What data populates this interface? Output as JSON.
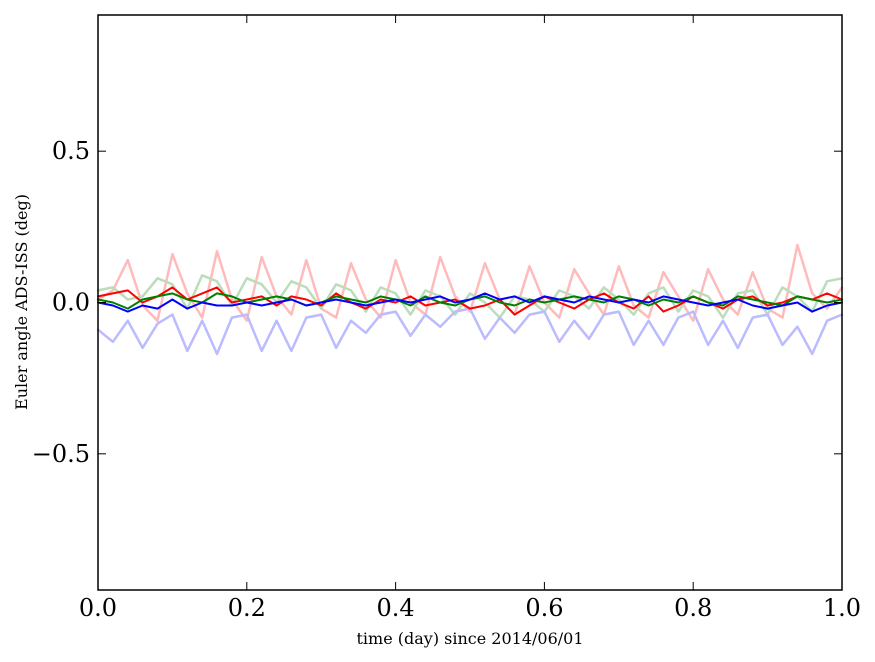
{
  "chart_data": {
    "type": "line",
    "title": "",
    "xlabel": "time (day) since 2014/06/01",
    "ylabel": "Euler angle ADS-ISS (deg)",
    "xlim": [
      0.0,
      1.0
    ],
    "ylim": [
      -0.95,
      0.95
    ],
    "xticks": [
      0.0,
      0.2,
      0.4,
      0.6,
      0.8,
      1.0
    ],
    "xtick_labels": [
      "0.0",
      "0.2",
      "0.4",
      "0.6",
      "0.8",
      "1.0"
    ],
    "yticks": [
      0.5,
      0.0,
      -0.5
    ],
    "ytick_labels": [
      "0.5",
      "0.0",
      "−0.5"
    ],
    "grid": false,
    "legend": "none",
    "x": [
      0.0,
      0.02,
      0.04,
      0.06,
      0.08,
      0.1,
      0.12,
      0.14,
      0.16,
      0.18,
      0.2,
      0.22,
      0.24,
      0.26,
      0.28,
      0.3,
      0.32,
      0.34,
      0.36,
      0.38,
      0.4,
      0.42,
      0.44,
      0.46,
      0.48,
      0.5,
      0.52,
      0.54,
      0.56,
      0.58,
      0.6,
      0.62,
      0.64,
      0.66,
      0.68,
      0.7,
      0.72,
      0.74,
      0.76,
      0.78,
      0.8,
      0.82,
      0.84,
      0.86,
      0.88,
      0.9,
      0.92,
      0.94,
      0.96,
      0.98,
      1.0
    ],
    "series": [
      {
        "color": "#ffbbbb",
        "width": 2.5,
        "values": [
          0.01,
          0.04,
          0.14,
          -0.01,
          -0.06,
          0.16,
          0.03,
          -0.05,
          0.17,
          0.01,
          -0.06,
          0.15,
          0.02,
          -0.04,
          0.14,
          -0.02,
          -0.05,
          0.13,
          0.01,
          -0.05,
          0.14,
          0.0,
          -0.04,
          0.15,
          0.02,
          -0.03,
          0.13,
          0.01,
          -0.04,
          0.12,
          0.0,
          -0.05,
          0.11,
          0.03,
          -0.04,
          0.12,
          -0.01,
          -0.05,
          0.1,
          0.02,
          -0.06,
          0.11,
          0.01,
          -0.04,
          0.1,
          -0.02,
          -0.05,
          0.19,
          0.03,
          -0.02,
          0.05
        ]
      },
      {
        "color": "#bbddbb",
        "width": 2.5,
        "values": [
          0.04,
          0.05,
          0.01,
          0.02,
          0.08,
          0.06,
          -0.02,
          0.09,
          0.07,
          -0.01,
          0.08,
          0.06,
          0.0,
          0.07,
          0.05,
          -0.02,
          0.06,
          0.04,
          -0.03,
          0.05,
          0.03,
          -0.04,
          0.04,
          0.02,
          -0.04,
          0.03,
          0.0,
          -0.05,
          0.02,
          0.01,
          -0.03,
          0.04,
          0.02,
          -0.02,
          0.05,
          0.01,
          -0.04,
          0.03,
          0.05,
          -0.03,
          0.04,
          0.02,
          -0.05,
          0.03,
          0.04,
          -0.04,
          0.05,
          0.02,
          -0.03,
          0.07,
          0.08
        ]
      },
      {
        "color": "#bbbbff",
        "width": 2.5,
        "values": [
          -0.09,
          -0.13,
          -0.06,
          -0.15,
          -0.07,
          -0.04,
          -0.16,
          -0.06,
          -0.17,
          -0.05,
          -0.04,
          -0.16,
          -0.06,
          -0.16,
          -0.05,
          -0.04,
          -0.15,
          -0.06,
          -0.1,
          -0.04,
          -0.03,
          -0.11,
          -0.04,
          -0.08,
          -0.03,
          -0.02,
          -0.12,
          -0.05,
          -0.1,
          -0.04,
          -0.03,
          -0.13,
          -0.06,
          -0.12,
          -0.04,
          -0.03,
          -0.14,
          -0.06,
          -0.14,
          -0.05,
          -0.03,
          -0.14,
          -0.06,
          -0.15,
          -0.05,
          -0.04,
          -0.14,
          -0.08,
          -0.17,
          -0.06,
          -0.04
        ]
      },
      {
        "color": "#ff0000",
        "width": 2.0,
        "values": [
          0.02,
          0.03,
          0.04,
          0.0,
          0.02,
          0.05,
          0.01,
          0.03,
          0.05,
          0.0,
          0.01,
          0.02,
          -0.01,
          0.02,
          0.01,
          -0.01,
          0.03,
          0.0,
          -0.02,
          0.01,
          0.0,
          0.02,
          -0.01,
          0.0,
          0.01,
          -0.02,
          -0.01,
          0.01,
          -0.04,
          -0.01,
          0.02,
          0.0,
          -0.02,
          0.01,
          0.03,
          0.0,
          -0.02,
          0.02,
          -0.03,
          -0.01,
          0.02,
          0.0,
          -0.02,
          0.01,
          0.02,
          -0.01,
          0.0,
          0.02,
          0.01,
          0.03,
          0.01
        ]
      },
      {
        "color": "#008000",
        "width": 2.0,
        "values": [
          0.01,
          0.0,
          -0.02,
          0.01,
          0.02,
          0.03,
          0.01,
          0.0,
          0.03,
          0.02,
          0.0,
          0.01,
          0.02,
          0.01,
          -0.01,
          0.0,
          0.02,
          0.01,
          0.0,
          0.02,
          0.01,
          -0.01,
          0.02,
          0.0,
          -0.01,
          0.01,
          0.02,
          0.0,
          -0.01,
          0.01,
          0.0,
          0.01,
          0.02,
          0.01,
          0.0,
          0.02,
          0.01,
          -0.01,
          0.01,
          0.0,
          0.02,
          0.0,
          -0.01,
          0.02,
          0.01,
          0.0,
          -0.01,
          0.02,
          0.01,
          0.0,
          0.01
        ]
      },
      {
        "color": "#0000ff",
        "width": 2.0,
        "values": [
          0.0,
          -0.01,
          -0.03,
          -0.01,
          -0.02,
          0.01,
          -0.02,
          0.0,
          -0.01,
          -0.01,
          0.0,
          -0.01,
          0.0,
          0.01,
          -0.01,
          0.0,
          0.01,
          0.0,
          -0.01,
          0.0,
          0.01,
          0.0,
          0.01,
          0.02,
          0.0,
          0.01,
          0.03,
          0.01,
          0.02,
          0.0,
          0.02,
          0.01,
          0.0,
          0.02,
          0.01,
          0.0,
          0.01,
          0.0,
          0.02,
          0.01,
          0.0,
          -0.01,
          0.0,
          0.01,
          -0.01,
          -0.02,
          -0.01,
          0.0,
          -0.03,
          -0.01,
          0.0
        ]
      }
    ]
  }
}
